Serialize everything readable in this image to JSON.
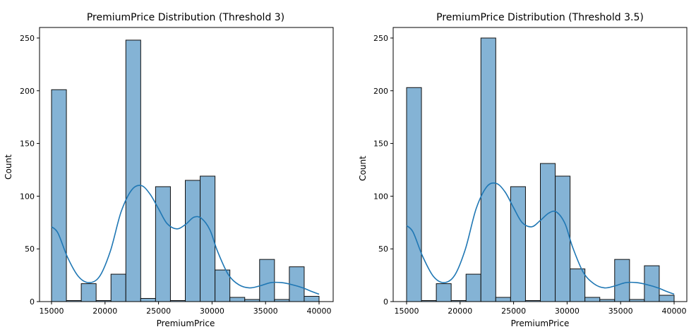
{
  "chart_data": [
    {
      "type": "bar",
      "title": "PremiumPrice Distribution (Threshold 3)",
      "xlabel": "PremiumPrice",
      "ylabel": "Count",
      "xlim": [
        15000,
        40000
      ],
      "ylim": [
        0,
        260
      ],
      "xticks": [
        15000,
        20000,
        25000,
        30000,
        35000,
        40000
      ],
      "yticks": [
        0,
        50,
        100,
        150,
        200,
        250
      ],
      "bin_edges": [
        15000,
        16389,
        17778,
        19167,
        20556,
        21944,
        23333,
        24722,
        26111,
        27500,
        28889,
        30278,
        31667,
        33056,
        34444,
        35833,
        37222,
        38611,
        40000
      ],
      "values": [
        201,
        1,
        17,
        1,
        26,
        248,
        3,
        109,
        1,
        115,
        119,
        30,
        4,
        2,
        40,
        2,
        33,
        5
      ],
      "kde": {
        "x": [
          15000,
          15600,
          16500,
          17500,
          18500,
          19500,
          20500,
          21500,
          22500,
          23400,
          24200,
          25000,
          25800,
          26700,
          27500,
          28300,
          29000,
          29800,
          30500,
          31500,
          32500,
          33500,
          34500,
          35500,
          36500,
          37500,
          38500,
          39200,
          40000
        ],
        "y": [
          71,
          65,
          42,
          24,
          18,
          24,
          48,
          85,
          106,
          110,
          102,
          88,
          74,
          69,
          73,
          80,
          79,
          68,
          48,
          26,
          16,
          13,
          15,
          18,
          18,
          16,
          13,
          10,
          7
        ]
      },
      "bar_color": "#84b3d5",
      "kde_color": "#1f77b4"
    },
    {
      "type": "bar",
      "title": "PremiumPrice Distribution (Threshold 3.5)",
      "xlabel": "PremiumPrice",
      "ylabel": "Count",
      "xlim": [
        15000,
        40000
      ],
      "ylim": [
        0,
        260
      ],
      "xticks": [
        15000,
        20000,
        25000,
        30000,
        35000,
        40000
      ],
      "yticks": [
        0,
        50,
        100,
        150,
        200,
        250
      ],
      "bin_edges": [
        15000,
        16389,
        17778,
        19167,
        20556,
        21944,
        23333,
        24722,
        26111,
        27500,
        28889,
        30278,
        31667,
        33056,
        34444,
        35833,
        37222,
        38611,
        40000
      ],
      "values": [
        203,
        1,
        17,
        1,
        26,
        250,
        4,
        109,
        1,
        131,
        119,
        31,
        4,
        2,
        40,
        2,
        34,
        6
      ],
      "kde": {
        "x": [
          15000,
          15600,
          16500,
          17500,
          18500,
          19500,
          20500,
          21500,
          22500,
          23400,
          24200,
          25000,
          25800,
          26700,
          27500,
          28300,
          29000,
          29800,
          30500,
          31500,
          32500,
          33500,
          34500,
          35500,
          36500,
          37500,
          38500,
          39200,
          40000
        ],
        "y": [
          72,
          66,
          43,
          24,
          18,
          25,
          50,
          88,
          109,
          112,
          104,
          89,
          75,
          71,
          77,
          84,
          85,
          74,
          52,
          28,
          17,
          13,
          15,
          18,
          18,
          16,
          13,
          10,
          7
        ]
      },
      "bar_color": "#84b3d5",
      "kde_color": "#1f77b4"
    }
  ]
}
